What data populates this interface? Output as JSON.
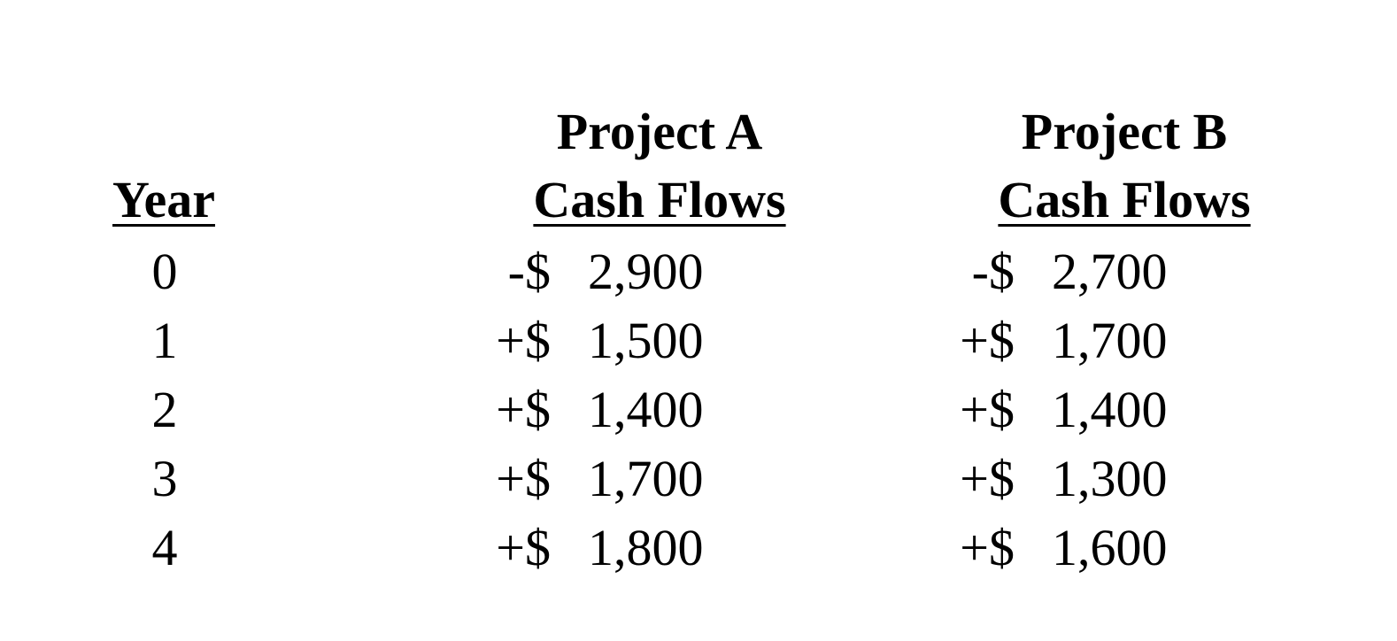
{
  "headers": {
    "year": "Year",
    "project_a_title": "Project A",
    "project_a_sub": "Cash Flows",
    "project_b_title": "Project B",
    "project_b_sub": "Cash Flows"
  },
  "rows": [
    {
      "year": "0",
      "a_sign": "-$",
      "a_amount": "2,900",
      "b_sign": "-$",
      "b_amount": "2,700"
    },
    {
      "year": "1",
      "a_sign": "+$",
      "a_amount": "1,500",
      "b_sign": "+$",
      "b_amount": "1,700"
    },
    {
      "year": "2",
      "a_sign": "+$",
      "a_amount": "1,400",
      "b_sign": "+$",
      "b_amount": "1,400"
    },
    {
      "year": "3",
      "a_sign": "+$",
      "a_amount": "1,700",
      "b_sign": "+$",
      "b_amount": "1,300"
    },
    {
      "year": "4",
      "a_sign": "+$",
      "a_amount": "1,800",
      "b_sign": "+$",
      "b_amount": "1,600"
    }
  ]
}
